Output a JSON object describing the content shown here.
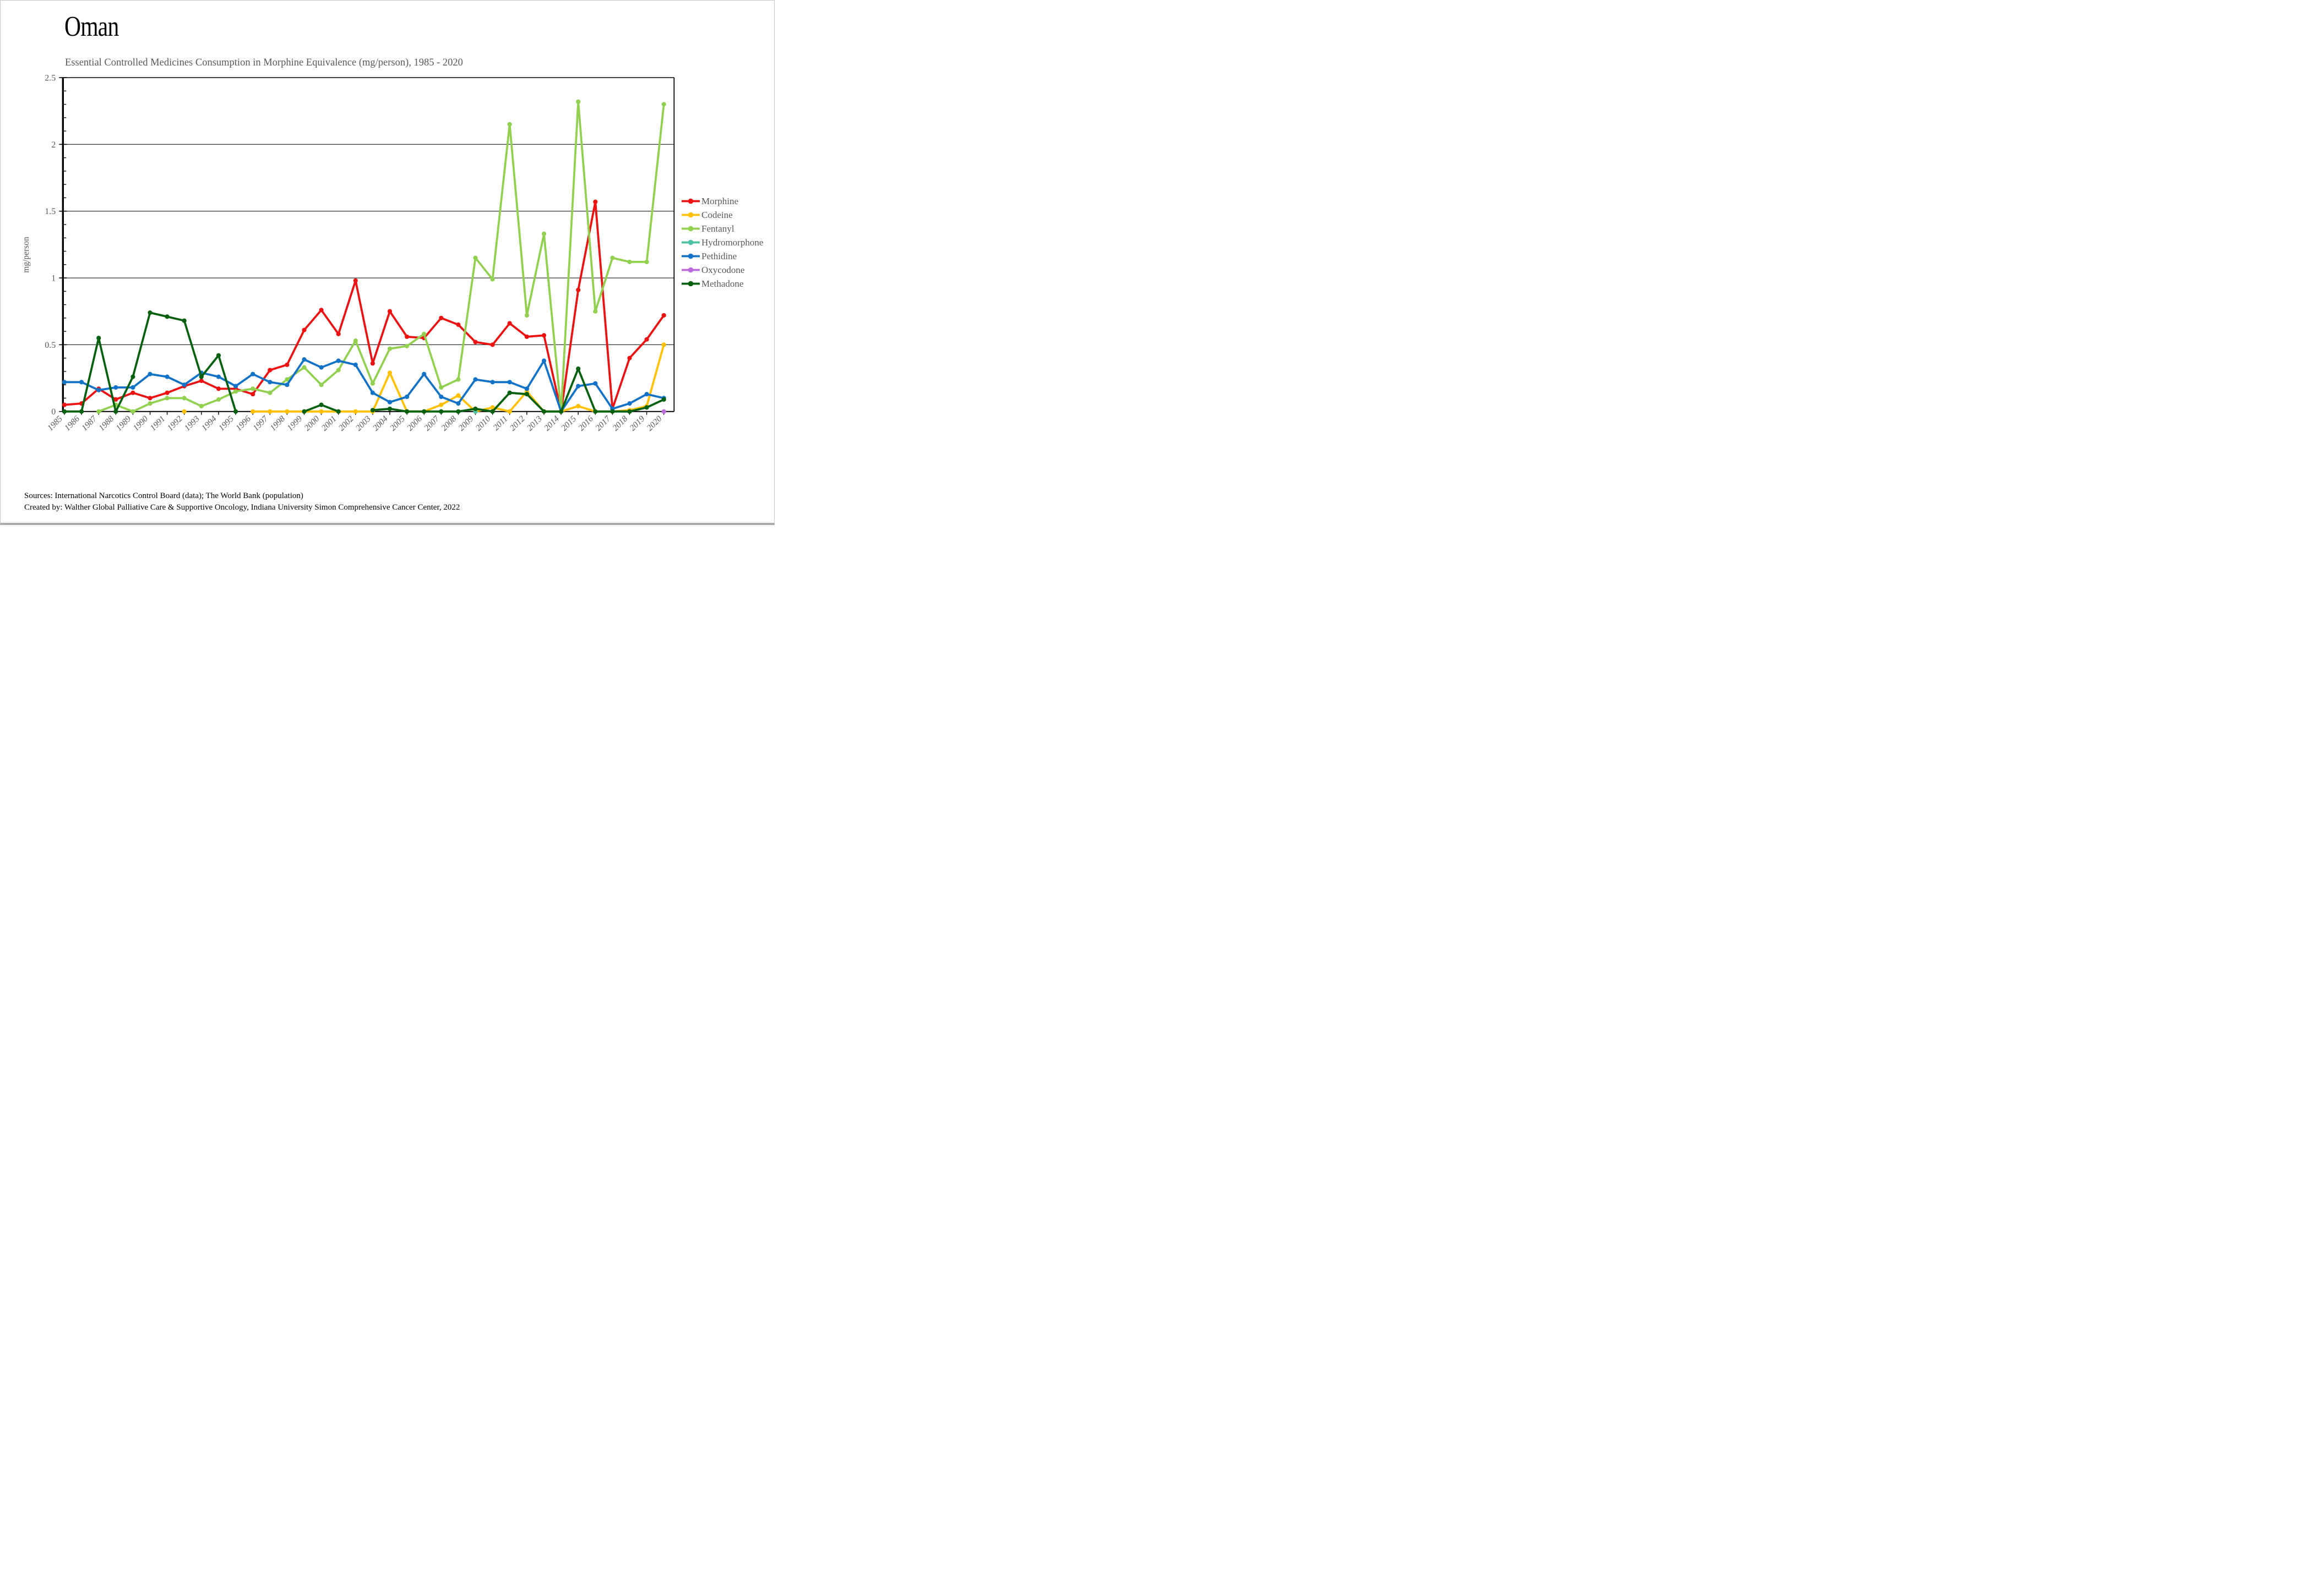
{
  "title": "Oman",
  "subtitle": "Essential Controlled Medicines Consumption in Morphine Equivalence (mg/person), 1985 - 2020",
  "footer": {
    "sources_line": "Sources: International Narcotics Control Board (data); The World Bank (population)",
    "created_line": "Created by: Walther Global Palliative Care & Supportive Oncology, Indiana University Simon Comprehensive Cancer Center, 2022"
  },
  "colors": {
    "axis": "#000000",
    "grid": "#1a1a1a",
    "tick_label": "#595959",
    "legend_text": "#595959"
  },
  "chart_data": {
    "type": "line",
    "title": "Oman",
    "subtitle": "Essential Controlled Medicines Consumption in Morphine Equivalence (mg/person), 1985 - 2020",
    "xlabel": "",
    "ylabel": "mg/person",
    "ylim": [
      0,
      2.5
    ],
    "ytick_step": 0.5,
    "ytick_labels": [
      "0",
      "0.5",
      "1",
      "1.5",
      "2",
      "2.5"
    ],
    "y_minor_step": 0.1,
    "grid": true,
    "legend_position": "right",
    "x": [
      1985,
      1986,
      1987,
      1988,
      1989,
      1990,
      1991,
      1992,
      1993,
      1994,
      1995,
      1996,
      1997,
      1998,
      1999,
      2000,
      2001,
      2002,
      2003,
      2004,
      2005,
      2006,
      2007,
      2008,
      2009,
      2010,
      2011,
      2012,
      2013,
      2014,
      2015,
      2016,
      2017,
      2018,
      2019,
      2020
    ],
    "series": [
      {
        "name": "Morphine",
        "color": "#ee1111",
        "values": [
          0.05,
          0.06,
          0.17,
          0.09,
          0.14,
          0.1,
          0.14,
          0.19,
          0.23,
          0.17,
          0.17,
          0.13,
          0.31,
          0.35,
          0.61,
          0.76,
          0.58,
          0.98,
          0.36,
          0.75,
          0.56,
          0.55,
          0.7,
          0.65,
          0.52,
          0.5,
          0.66,
          0.56,
          0.57,
          0,
          0.91,
          1.57,
          0.02,
          0.4,
          0.54,
          0.72
        ]
      },
      {
        "name": "Codeine",
        "color": "#ffc000",
        "values": [
          null,
          null,
          null,
          null,
          null,
          null,
          null,
          0,
          null,
          null,
          null,
          0,
          0,
          0,
          0,
          0,
          0,
          0,
          0,
          0.29,
          0,
          0,
          0.05,
          0.12,
          0,
          0.03,
          0,
          0.15,
          0,
          0,
          0.04,
          0,
          0,
          0.01,
          0.04,
          0.5
        ]
      },
      {
        "name": "Fentanyl",
        "color": "#92d050",
        "values": [
          null,
          null,
          0,
          0.05,
          0,
          0.06,
          0.1,
          0.1,
          0.04,
          0.09,
          0.15,
          0.17,
          0.14,
          0.24,
          0.33,
          0.2,
          0.31,
          0.53,
          0.21,
          0.47,
          0.49,
          0.58,
          0.18,
          0.24,
          1.15,
          0.99,
          2.15,
          0.72,
          1.33,
          0,
          2.32,
          0.75,
          1.15,
          1.12,
          1.12,
          2.3
        ]
      },
      {
        "name": "Hydromorphone",
        "color": "#4ec3a4",
        "values": [
          null,
          null,
          null,
          null,
          null,
          null,
          null,
          null,
          null,
          null,
          null,
          null,
          null,
          null,
          null,
          null,
          null,
          null,
          null,
          null,
          null,
          null,
          null,
          null,
          0,
          null,
          null,
          null,
          null,
          null,
          null,
          null,
          null,
          null,
          null,
          null
        ]
      },
      {
        "name": "Pethidine",
        "color": "#1272c7",
        "values": [
          0.22,
          0.22,
          0.16,
          0.18,
          0.18,
          0.28,
          0.26,
          0.2,
          0.29,
          0.26,
          0.19,
          0.28,
          0.22,
          0.2,
          0.39,
          0.33,
          0.38,
          0.35,
          0.14,
          0.07,
          0.11,
          0.28,
          0.11,
          0.06,
          0.24,
          0.22,
          0.22,
          0.17,
          0.38,
          0,
          0.19,
          0.21,
          0.02,
          0.06,
          0.13,
          0.1
        ]
      },
      {
        "name": "Oxycodone",
        "color": "#bb6bda",
        "values": [
          null,
          null,
          null,
          null,
          null,
          null,
          null,
          null,
          null,
          null,
          null,
          null,
          null,
          null,
          null,
          null,
          null,
          null,
          null,
          null,
          null,
          null,
          null,
          null,
          null,
          null,
          null,
          null,
          null,
          null,
          null,
          null,
          null,
          null,
          null,
          0
        ]
      },
      {
        "name": "Methadone",
        "color": "#056010",
        "values": [
          0,
          0,
          0.55,
          0,
          0.26,
          0.74,
          0.71,
          0.68,
          0.26,
          0.42,
          0,
          null,
          null,
          null,
          0,
          0.05,
          0,
          null,
          0.01,
          0.02,
          0,
          0,
          0,
          0,
          0.02,
          0,
          0.14,
          0.13,
          0,
          0,
          0.32,
          0,
          0,
          0,
          0.03,
          0.09
        ]
      }
    ]
  }
}
